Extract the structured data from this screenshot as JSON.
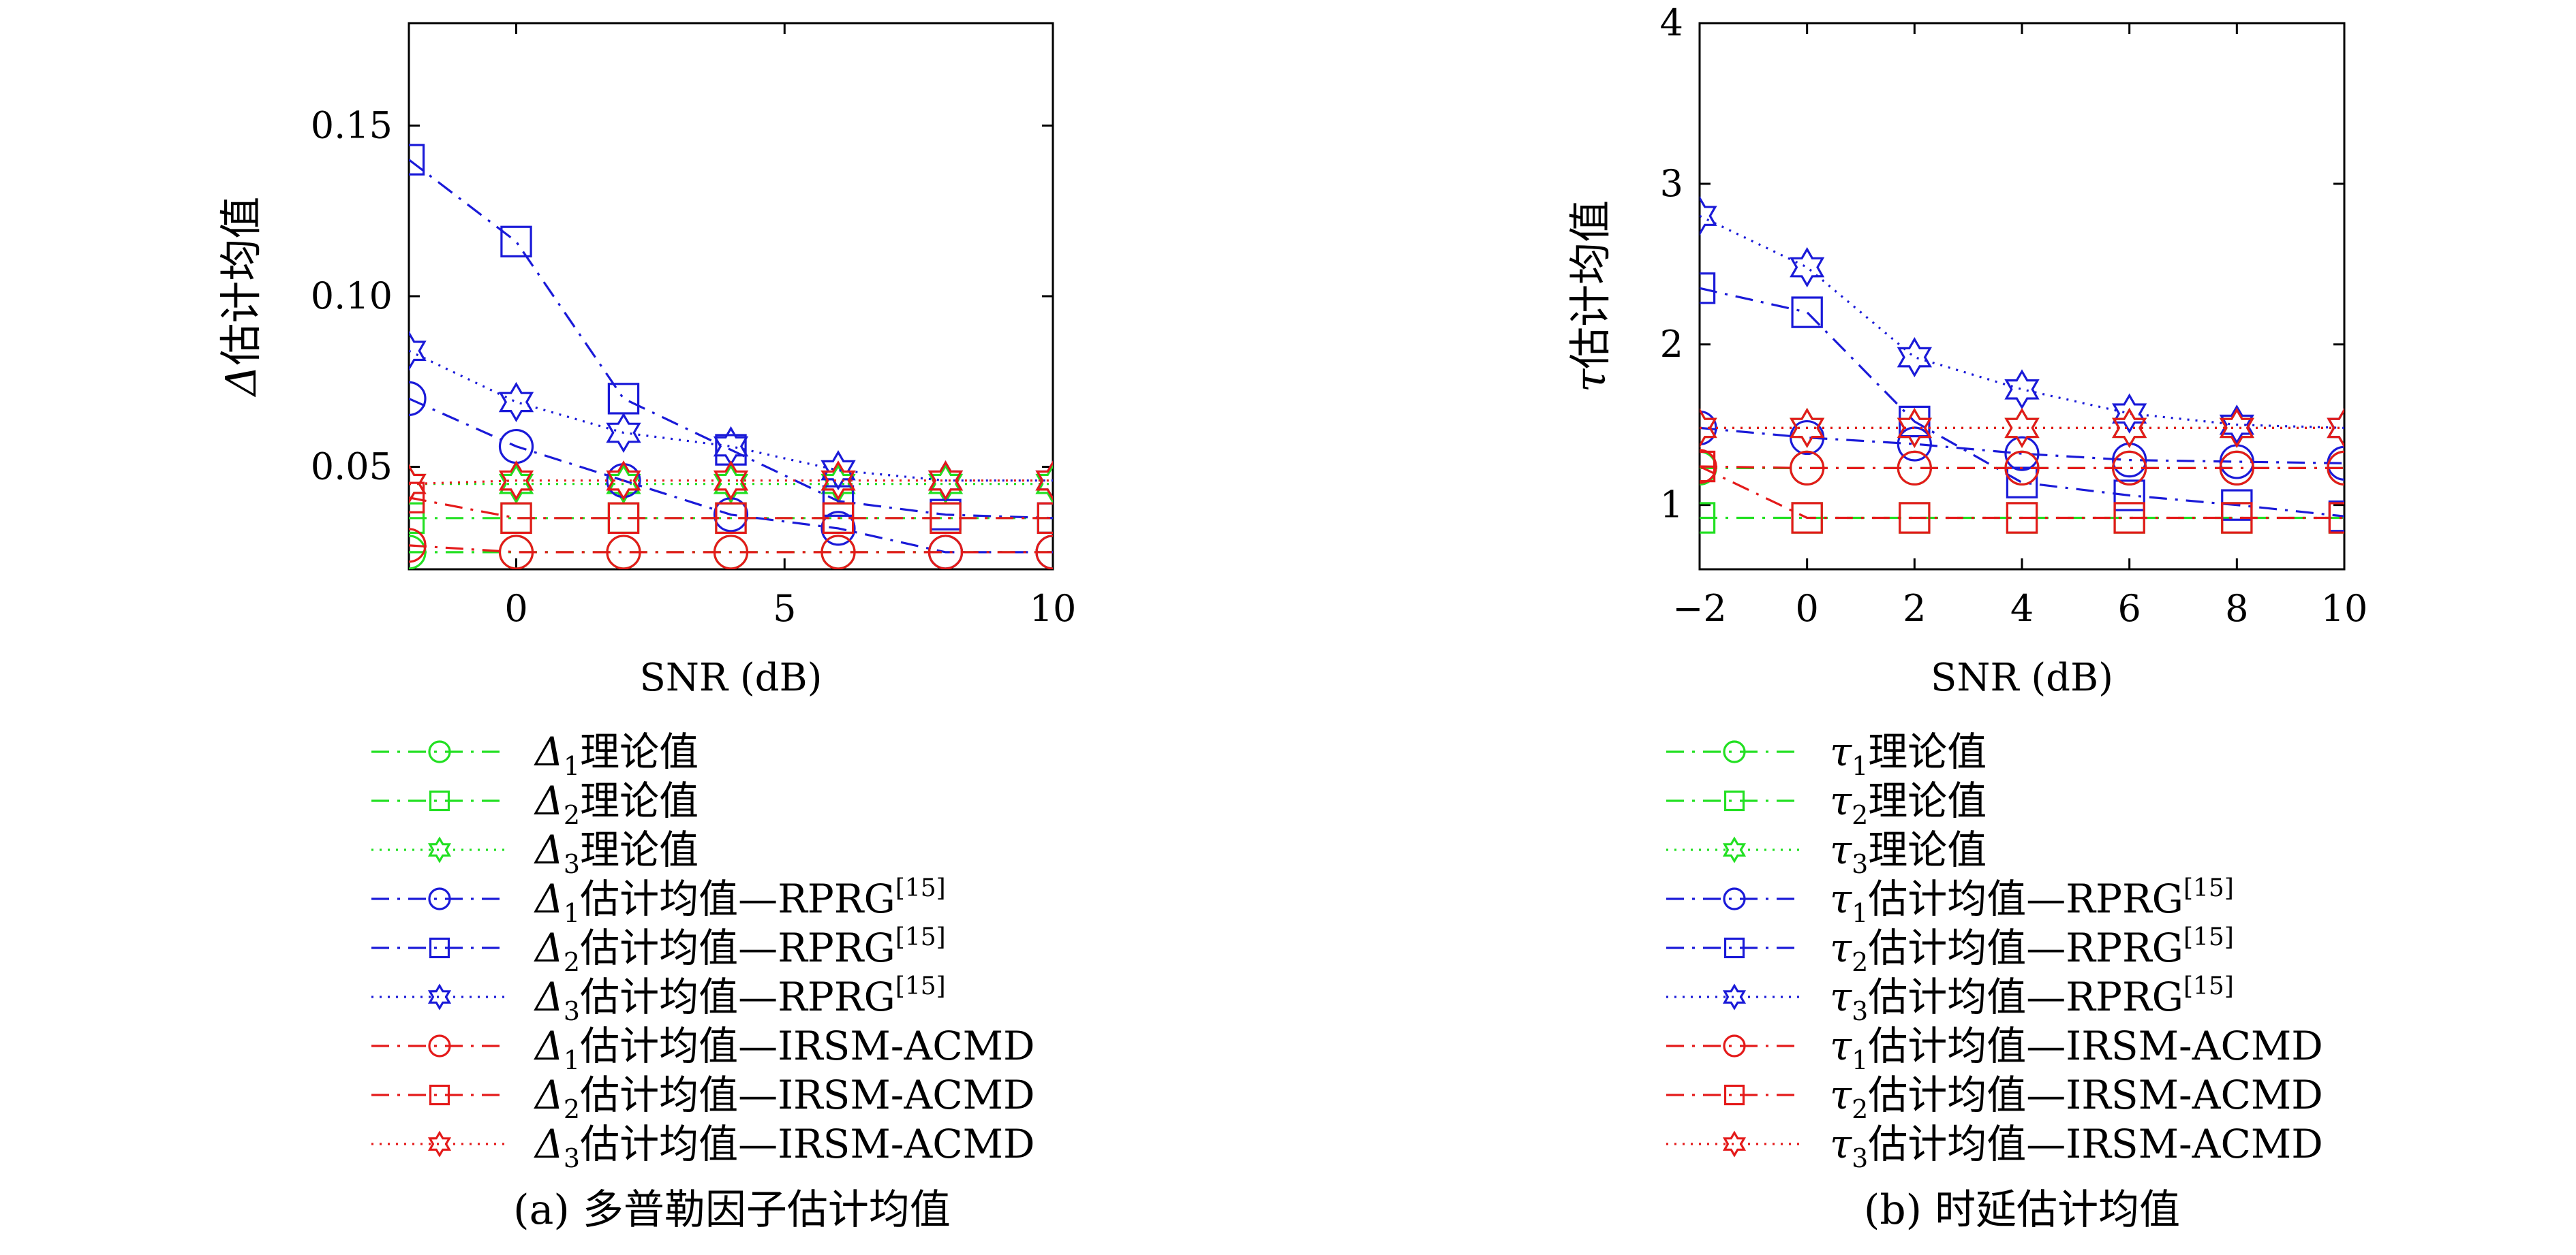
{
  "colors": {
    "green": "#22e022",
    "blue": "#1a1ad8",
    "red": "#e41a1a",
    "olive": "#b8860b"
  },
  "series_styles": [
    {
      "color": "green",
      "dash": "dashdot",
      "marker": "circle"
    },
    {
      "color": "green",
      "dash": "dashdot",
      "marker": "square"
    },
    {
      "color": "green",
      "dash": "dotted",
      "marker": "star"
    },
    {
      "color": "blue",
      "dash": "dashdot",
      "marker": "circle"
    },
    {
      "color": "blue",
      "dash": "dashdot",
      "marker": "square"
    },
    {
      "color": "blue",
      "dash": "dotted",
      "marker": "star"
    },
    {
      "color": "red",
      "dash": "dashdot",
      "marker": "circle"
    },
    {
      "color": "red",
      "dash": "dashdot",
      "marker": "square"
    },
    {
      "color": "red",
      "dash": "dotted",
      "marker": "star"
    }
  ],
  "chart_data": [
    {
      "type": "line",
      "caption": "(a) 多普勒因子估计均值",
      "xlabel": "SNR (dB)",
      "ylabel_symbol": "Δ",
      "ylabel_text": "估计均值",
      "xlim": [
        -2,
        10
      ],
      "ylim": [
        0.02,
        0.18
      ],
      "xticks": [
        0,
        5,
        10
      ],
      "xtick_labels": [
        "0",
        "5",
        "10"
      ],
      "yticks": [
        0.05,
        0.1,
        0.15
      ],
      "ytick_labels": [
        "0.05",
        "0.10",
        "0.15"
      ],
      "x": [
        -2,
        0,
        2,
        4,
        6,
        8,
        10
      ],
      "series": [
        {
          "sym": "Δ",
          "sub": "1",
          "suffix": "理论值",
          "values": [
            0.025,
            0.025,
            0.025,
            0.025,
            0.025,
            0.025,
            0.025
          ]
        },
        {
          "sym": "Δ",
          "sub": "2",
          "suffix": "理论值",
          "values": [
            0.035,
            0.035,
            0.035,
            0.035,
            0.035,
            0.035,
            0.035
          ]
        },
        {
          "sym": "Δ",
          "sub": "3",
          "suffix": "理论值",
          "values": [
            0.045,
            0.045,
            0.045,
            0.045,
            0.045,
            0.045,
            0.045
          ]
        },
        {
          "sym": "Δ",
          "sub": "1",
          "suffix": "估计均值—RPRG",
          "sup": "[15]",
          "values": [
            0.07,
            0.056,
            0.046,
            0.036,
            0.032,
            0.025,
            0.025
          ]
        },
        {
          "sym": "Δ",
          "sub": "2",
          "suffix": "估计均值—RPRG",
          "sup": "[15]",
          "values": [
            0.14,
            0.116,
            0.07,
            0.055,
            0.04,
            0.036,
            0.035
          ]
        },
        {
          "sym": "Δ",
          "sub": "3",
          "suffix": "估计均值—RPRG",
          "sup": "[15]",
          "values": [
            0.084,
            0.069,
            0.06,
            0.056,
            0.049,
            0.046,
            0.046
          ]
        },
        {
          "sym": "Δ",
          "sub": "1",
          "suffix": "估计均值—IRSM-ACMD",
          "values": [
            0.027,
            0.025,
            0.025,
            0.025,
            0.025,
            0.025,
            0.025
          ]
        },
        {
          "sym": "Δ",
          "sub": "2",
          "suffix": "估计均值—IRSM-ACMD",
          "values": [
            0.041,
            0.035,
            0.035,
            0.035,
            0.035,
            0.035,
            0.035
          ]
        },
        {
          "sym": "Δ",
          "sub": "3",
          "suffix": "估计均值—IRSM-ACMD",
          "values": [
            0.045,
            0.046,
            0.046,
            0.046,
            0.046,
            0.046,
            0.046
          ]
        }
      ]
    },
    {
      "type": "line",
      "caption": "(b) 时延估计均值",
      "xlabel": "SNR (dB)",
      "ylabel_symbol": "τ",
      "ylabel_text": "估计均值",
      "xlim": [
        -2,
        10
      ],
      "ylim": [
        0.6,
        4
      ],
      "xticks": [
        -2,
        0,
        2,
        4,
        6,
        8,
        10
      ],
      "xtick_labels": [
        "−2",
        "0",
        "2",
        "4",
        "6",
        "8",
        "10"
      ],
      "yticks": [
        1,
        2,
        3,
        4
      ],
      "ytick_labels": [
        "1",
        "2",
        "3",
        "4"
      ],
      "x": [
        -2,
        0,
        2,
        4,
        6,
        8,
        10
      ],
      "series": [
        {
          "sym": "τ",
          "sub": "1",
          "suffix": "理论值",
          "values": [
            1.23,
            1.23,
            1.23,
            1.23,
            1.23,
            1.23,
            1.23
          ]
        },
        {
          "sym": "τ",
          "sub": "2",
          "suffix": "理论值",
          "values": [
            0.92,
            0.92,
            0.92,
            0.92,
            0.92,
            0.92,
            0.92
          ]
        },
        {
          "sym": "τ",
          "sub": "3",
          "suffix": "理论值",
          "values": [
            1.48,
            1.48,
            1.48,
            1.48,
            1.48,
            1.48,
            1.48
          ]
        },
        {
          "sym": "τ",
          "sub": "1",
          "suffix": "估计均值—RPRG",
          "sup": "[15]",
          "values": [
            1.48,
            1.42,
            1.38,
            1.32,
            1.28,
            1.27,
            1.26
          ]
        },
        {
          "sym": "τ",
          "sub": "2",
          "suffix": "估计均值—RPRG",
          "sup": "[15]",
          "values": [
            2.35,
            2.2,
            1.52,
            1.14,
            1.06,
            1.0,
            0.93
          ]
        },
        {
          "sym": "τ",
          "sub": "3",
          "suffix": "估计均值—RPRG",
          "sup": "[15]",
          "values": [
            2.8,
            2.48,
            1.92,
            1.72,
            1.57,
            1.5,
            1.48
          ]
        },
        {
          "sym": "τ",
          "sub": "1",
          "suffix": "估计均值—IRSM-ACMD",
          "values": [
            1.24,
            1.23,
            1.23,
            1.23,
            1.23,
            1.23,
            1.23
          ]
        },
        {
          "sym": "τ",
          "sub": "2",
          "suffix": "估计均值—IRSM-ACMD",
          "values": [
            1.24,
            0.92,
            0.92,
            0.92,
            0.92,
            0.92,
            0.92
          ]
        },
        {
          "sym": "τ",
          "sub": "3",
          "suffix": "估计均值—IRSM-ACMD",
          "values": [
            1.48,
            1.48,
            1.48,
            1.48,
            1.48,
            1.48,
            1.48
          ]
        }
      ]
    }
  ]
}
